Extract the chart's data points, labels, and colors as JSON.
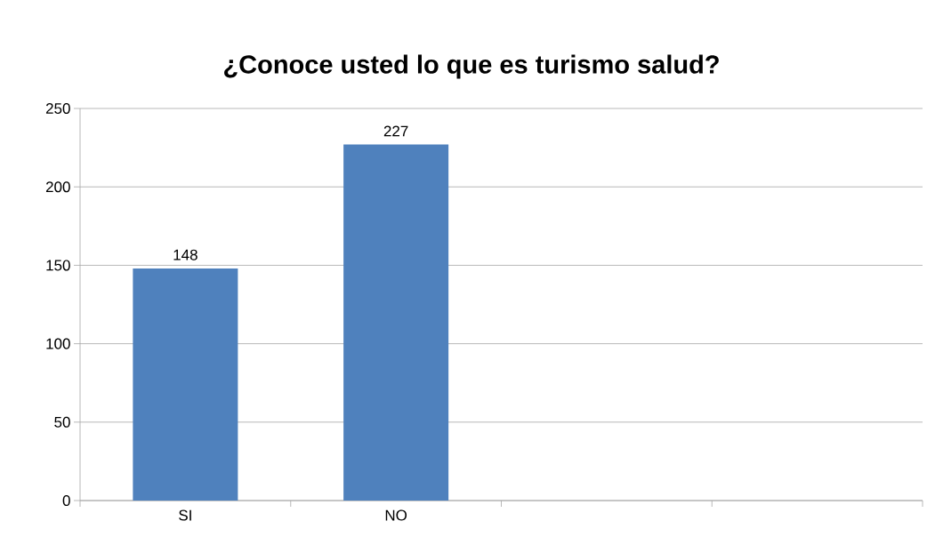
{
  "chart_data": {
    "type": "bar",
    "title": "¿Conoce usted lo que es turismo salud?",
    "categories": [
      "SI",
      "NO",
      null,
      null
    ],
    "values": [
      148,
      227,
      null,
      null
    ],
    "color": "#4f81bd",
    "ylim": [
      0,
      250
    ],
    "yticks": [
      0,
      50,
      100,
      150,
      200,
      250
    ],
    "grid": "y",
    "data_labels": true
  }
}
